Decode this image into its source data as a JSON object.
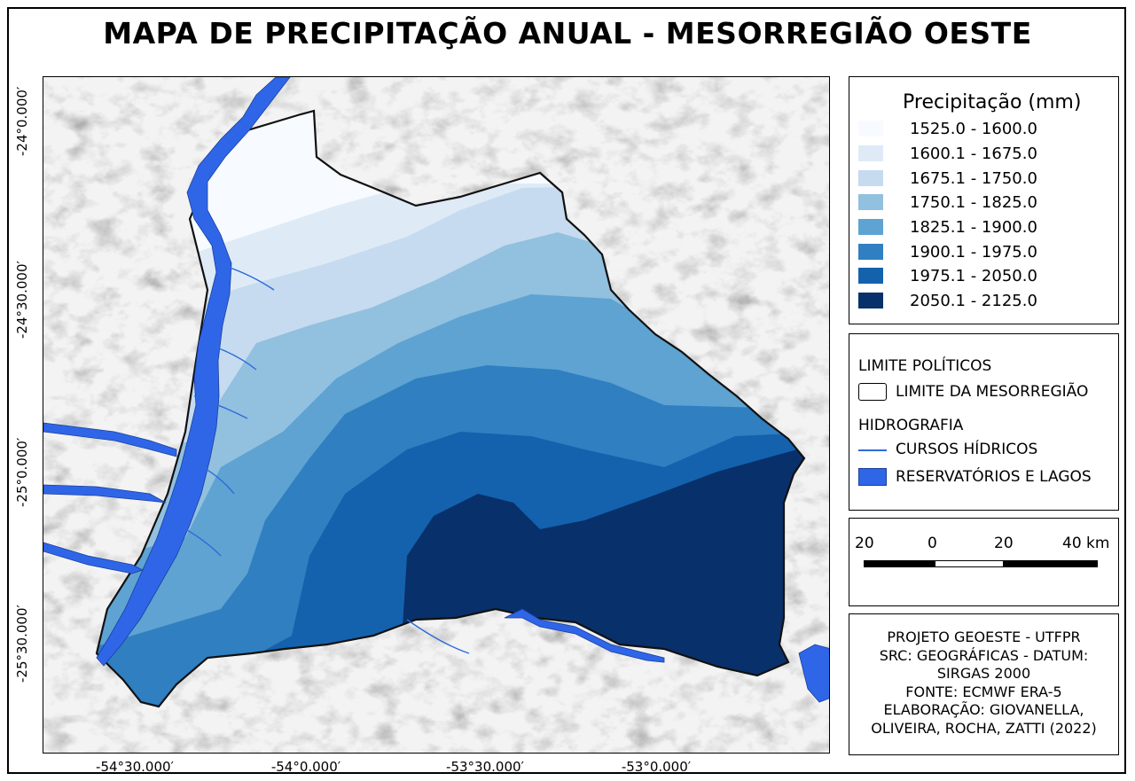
{
  "title": "MAPA DE PRECIPITAÇÃO ANUAL - MESORREGIÃO OESTE",
  "axes": {
    "lat_labels": [
      "-24°0.000′",
      "-24°30.000′",
      "-25°0.000′",
      "-25°30.000′"
    ],
    "lon_labels": [
      "-54°30.000′",
      "-54°0.000′",
      "-53°30.000′",
      "-53°0.000′"
    ]
  },
  "legend": {
    "title": "Precipitação (mm)",
    "classes": [
      {
        "label": "1525.0 - 1600.0",
        "color": "#f7fbff"
      },
      {
        "label": "1600.1 - 1675.0",
        "color": "#deebf7"
      },
      {
        "label": "1675.1 - 1750.0",
        "color": "#c6dbef"
      },
      {
        "label": "1750.1 - 1825.0",
        "color": "#92c0df"
      },
      {
        "label": "1825.1 - 1900.0",
        "color": "#5ea3d2"
      },
      {
        "label": "1900.1 - 1975.0",
        "color": "#2f7fc1"
      },
      {
        "label": "1975.1 - 2050.0",
        "color": "#1462ad"
      },
      {
        "label": "2050.1 - 2125.0",
        "color": "#08306b"
      }
    ]
  },
  "layers": {
    "political_heading": "LIMITE POLÍTICOS",
    "boundary_label": "LIMITE DA MESORREGIÃO",
    "hydro_heading": "HIDROGRAFIA",
    "rivers_label": "CURSOS HÍDRICOS",
    "lakes_label": "RESERVATÓRIOS E LAGOS",
    "river_color": "#2e6bd9",
    "lake_color": "#2f66e8"
  },
  "scale_bar": {
    "labels": [
      "20",
      "0",
      "20",
      "40 km"
    ]
  },
  "credits": [
    "PROJETO GEOESTE - UTFPR",
    "SRC: GEOGRÁFICAS - DATUM:",
    "SIRGAS 2000",
    "FONTE: ECMWF ERA-5",
    "ELABORAÇÃO: GIOVANELLA,",
    "OLIVEIRA, ROCHA, ZATTI (2022)"
  ]
}
